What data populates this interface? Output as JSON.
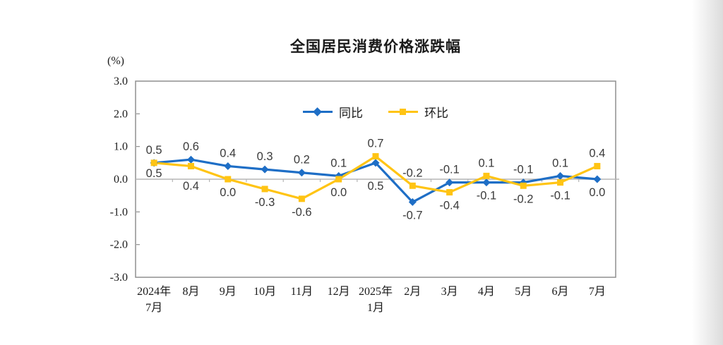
{
  "chart_data": {
    "type": "line",
    "title": "全国居民消费价格涨跌幅",
    "unit_label": "(%)",
    "categories": [
      [
        "2024年",
        "7月"
      ],
      [
        "8月"
      ],
      [
        "9月"
      ],
      [
        "10月"
      ],
      [
        "11月"
      ],
      [
        "12月"
      ],
      [
        "2025年",
        "1月"
      ],
      [
        "2月"
      ],
      [
        "3月"
      ],
      [
        "4月"
      ],
      [
        "5月"
      ],
      [
        "6月"
      ],
      [
        "7月"
      ]
    ],
    "series": [
      {
        "name": "同比",
        "marker": "diamond",
        "color": "#1e6ec6",
        "values": [
          0.5,
          0.6,
          0.4,
          0.3,
          0.2,
          0.1,
          0.5,
          -0.7,
          -0.1,
          -0.1,
          -0.1,
          0.1,
          0.0
        ]
      },
      {
        "name": "环比",
        "marker": "square",
        "color": "#ffc414",
        "values": [
          0.5,
          0.4,
          0.0,
          -0.3,
          -0.6,
          0.0,
          0.7,
          -0.2,
          -0.4,
          0.1,
          -0.2,
          -0.1,
          0.4
        ]
      }
    ],
    "ylim": [
      -3.0,
      3.0
    ],
    "ytick_labels": [
      "3.0",
      "2.0",
      "1.0",
      "0.0",
      "-1.0",
      "-2.0",
      "-3.0"
    ],
    "grid": false,
    "legend_position": "top-center",
    "colors": {
      "axis_line": "#8f8f8f",
      "zero_line": "#b5b5b5",
      "data_label_text": "#3a3a3a",
      "axis_text": "#1a1a1a"
    }
  }
}
